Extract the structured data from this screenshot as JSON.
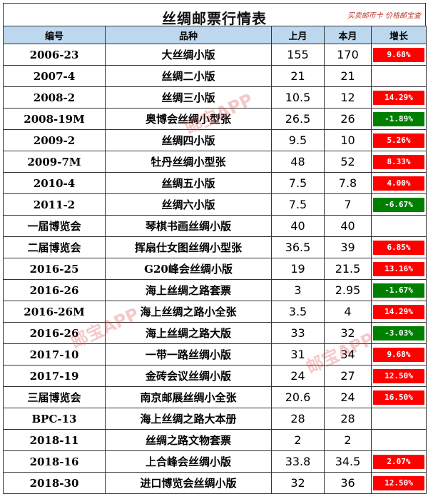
{
  "title": "丝绸邮票行情表",
  "brand": "买卖邮币卡 价格邮宝查",
  "columns": [
    "编号",
    "品种",
    "上月",
    "本月",
    "增长"
  ],
  "rows": [
    {
      "code": "2006-23",
      "name": "大丝绸小版",
      "last": "155",
      "curr": "170",
      "change": "9.68%",
      "dir": "up"
    },
    {
      "code": "2007-4",
      "name": "丝绸二小版",
      "last": "21",
      "curr": "21",
      "change": "",
      "dir": ""
    },
    {
      "code": "2008-2",
      "name": "丝绸三小版",
      "last": "10.5",
      "curr": "12",
      "change": "14.29%",
      "dir": "up"
    },
    {
      "code": "2008-19M",
      "name": "奥博会丝绸小型张",
      "last": "26.5",
      "curr": "26",
      "change": "-1.89%",
      "dir": "down"
    },
    {
      "code": "2009-2",
      "name": "丝绸四小版",
      "last": "9.5",
      "curr": "10",
      "change": "5.26%",
      "dir": "up"
    },
    {
      "code": "2009-7M",
      "name": "牡丹丝绸小型张",
      "last": "48",
      "curr": "52",
      "change": "8.33%",
      "dir": "up"
    },
    {
      "code": "2010-4",
      "name": "丝绸五小版",
      "last": "7.5",
      "curr": "7.8",
      "change": "4.00%",
      "dir": "up"
    },
    {
      "code": "2011-2",
      "name": "丝绸六小版",
      "last": "7.5",
      "curr": "7",
      "change": "-6.67%",
      "dir": "down"
    },
    {
      "code": "一届博览会",
      "name": "琴棋书画丝绸小版",
      "last": "40",
      "curr": "40",
      "change": "",
      "dir": ""
    },
    {
      "code": "二届博览会",
      "name": "挥扇仕女图丝绸小型张",
      "last": "36.5",
      "curr": "39",
      "change": "6.85%",
      "dir": "up"
    },
    {
      "code": "2016-25",
      "name": "G20峰会丝绸小版",
      "last": "19",
      "curr": "21.5",
      "change": "13.16%",
      "dir": "up"
    },
    {
      "code": "2016-26",
      "name": "海上丝绸之路套票",
      "last": "3",
      "curr": "2.95",
      "change": "-1.67%",
      "dir": "down"
    },
    {
      "code": "2016-26M",
      "name": "海上丝绸之路小全张",
      "last": "3.5",
      "curr": "4",
      "change": "14.29%",
      "dir": "up"
    },
    {
      "code": "2016-26",
      "name": "海上丝绸之路大版",
      "last": "33",
      "curr": "32",
      "change": "-3.03%",
      "dir": "down"
    },
    {
      "code": "2017-10",
      "name": "一带一路丝绸小版",
      "last": "31",
      "curr": "34",
      "change": "9.68%",
      "dir": "up"
    },
    {
      "code": "2017-19",
      "name": "金砖会议丝绸小版",
      "last": "24",
      "curr": "27",
      "change": "12.50%",
      "dir": "up"
    },
    {
      "code": "三届博览会",
      "name": "南京邮展丝绸小全张",
      "last": "20.6",
      "curr": "24",
      "change": "16.50%",
      "dir": "up"
    },
    {
      "code": "BPC-13",
      "name": "海上丝绸之路大本册",
      "last": "28",
      "curr": "28",
      "change": "",
      "dir": ""
    },
    {
      "code": "2018-11",
      "name": "丝绸之路文物套票",
      "last": "2",
      "curr": "2",
      "change": "",
      "dir": ""
    },
    {
      "code": "2018-16",
      "name": "上合峰会丝绸小版",
      "last": "33.8",
      "curr": "34.5",
      "change": "2.07%",
      "dir": "up"
    },
    {
      "code": "2018-30",
      "name": "进口博览会丝绸小版",
      "last": "32",
      "curr": "36",
      "change": "12.50%",
      "dir": "up"
    }
  ],
  "watermark": "邮宝APP",
  "colors": {
    "header_bg": "#bdd7ee",
    "up": "#ff0000",
    "down": "#008000"
  }
}
